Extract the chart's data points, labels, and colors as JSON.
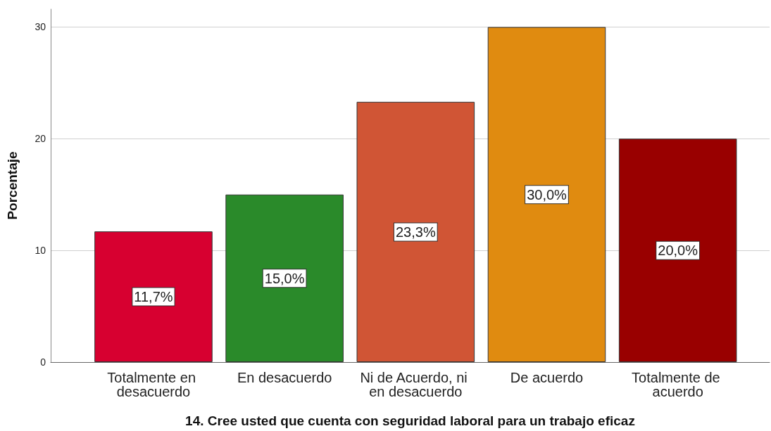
{
  "chart_data": {
    "type": "bar",
    "xlabel": "14. Cree usted que cuenta con seguridad laboral para un trabajo eficaz",
    "ylabel": "Porcentaje",
    "categories": [
      "Totalmente en desacuerdo",
      "En desacuerdo",
      "Ni de Acuerdo, ni en desacuerdo",
      "De acuerdo",
      "Totalmente de acuerdo"
    ],
    "values": [
      11.7,
      15.0,
      23.3,
      30.0,
      20.0
    ],
    "colors": [
      "#d70030",
      "#2a8a2a",
      "#d05535",
      "#e08b10",
      "#990000"
    ],
    "value_labels": [
      "11,7%",
      "15,0%",
      "23,3%",
      "30,0%",
      "20,0%"
    ],
    "ylim": [
      0,
      31.6
    ],
    "yticks": [
      0,
      10,
      20,
      30
    ],
    "grid": "y"
  }
}
